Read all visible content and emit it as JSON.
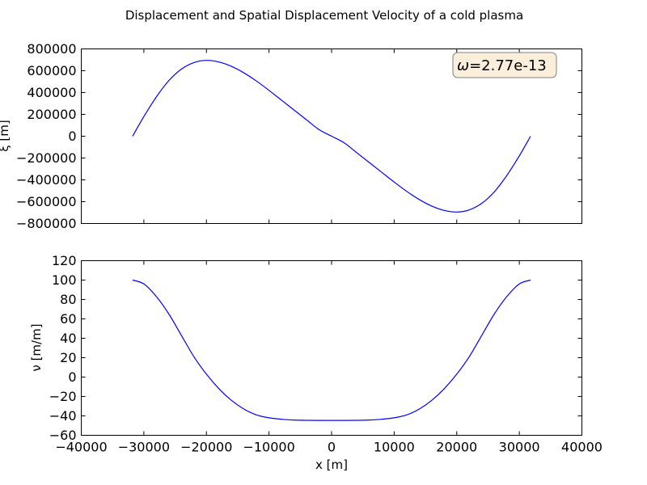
{
  "chart_data": [
    {
      "type": "line",
      "title": "Displacement and Spatial Displacement Velocity of a cold plasma",
      "ylabel": "ξ [m]",
      "xlim": [
        -40000,
        40000
      ],
      "ylim": [
        -800000,
        800000
      ],
      "yticks": [
        "800000",
        "600000",
        "400000",
        "200000",
        "0",
        "−200000",
        "−400000",
        "−600000",
        "−800000"
      ],
      "annotation": {
        "label": "ω",
        "eq": "=",
        "value": "2.77e-13",
        "box_color": "#fbeedb"
      },
      "series": [
        {
          "color": "#0000ff",
          "x": [
            -31800,
            -30000,
            -28000,
            -26000,
            -24000,
            -22000,
            -20000,
            -18000,
            -16000,
            -14000,
            -12000,
            -10000,
            -8000,
            -6000,
            -4000,
            -2000,
            0,
            2000,
            4000,
            6000,
            8000,
            10000,
            12000,
            14000,
            16000,
            18000,
            20000,
            22000,
            24000,
            26000,
            28000,
            30000,
            31800
          ],
          "y": [
            0,
            180000,
            360000,
            510000,
            615000,
            675000,
            695000,
            680000,
            640000,
            580000,
            505000,
            420000,
            330000,
            240000,
            150000,
            60000,
            0,
            -60000,
            -150000,
            -240000,
            -330000,
            -420000,
            -505000,
            -580000,
            -640000,
            -680000,
            -695000,
            -675000,
            -615000,
            -510000,
            -360000,
            -180000,
            0
          ]
        }
      ]
    },
    {
      "type": "line",
      "xlabel": "x [m]",
      "ylabel": "ν [m/m]",
      "xlim": [
        -40000,
        40000
      ],
      "ylim": [
        -60,
        120
      ],
      "xticks": [
        "−40000",
        "−30000",
        "−20000",
        "−10000",
        "0",
        "10000",
        "20000",
        "30000",
        "40000"
      ],
      "yticks": [
        "120",
        "100",
        "80",
        "60",
        "40",
        "20",
        "0",
        "−20",
        "−40",
        "−60"
      ],
      "series": [
        {
          "color": "#0000ff",
          "x": [
            -31800,
            -30000,
            -28000,
            -26000,
            -24000,
            -22000,
            -20000,
            -18000,
            -16000,
            -14000,
            -12000,
            -10000,
            -8000,
            -6000,
            -4000,
            -2000,
            0,
            2000,
            4000,
            6000,
            8000,
            10000,
            12000,
            14000,
            16000,
            18000,
            20000,
            22000,
            24000,
            26000,
            28000,
            30000,
            31800
          ],
          "y": [
            100,
            96,
            83,
            65,
            43,
            21,
            3,
            -12,
            -24,
            -33,
            -39,
            -42,
            -43.5,
            -44.3,
            -44.6,
            -44.7,
            -44.7,
            -44.7,
            -44.6,
            -44.3,
            -43.5,
            -42,
            -39,
            -33,
            -24,
            -12,
            3,
            21,
            43,
            65,
            83,
            96,
            100
          ]
        }
      ]
    }
  ]
}
